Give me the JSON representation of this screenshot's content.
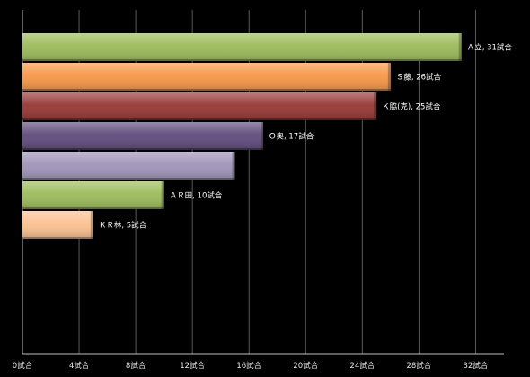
{
  "chart_data": {
    "type": "bar",
    "orientation": "horizontal",
    "unit": "試合",
    "xlim": [
      0,
      34
    ],
    "x_ticks": [
      0,
      4,
      8,
      12,
      16,
      20,
      24,
      28,
      32
    ],
    "x_tick_labels": [
      "0試合",
      "4試合",
      "8試合",
      "12試合",
      "16試合",
      "20試合",
      "24試合",
      "28試合",
      "32試合"
    ],
    "grid": "vertical",
    "bars": [
      {
        "category": "Ａ立",
        "value": 31,
        "color": "#9bbb59",
        "label": "Ａ立, 31試合"
      },
      {
        "category": "Ｓ藤",
        "value": 26,
        "color": "#f79646",
        "label": "Ｓ藤, 26試合"
      },
      {
        "category": "Ｋ脇(克)",
        "value": 25,
        "color": "#953735",
        "label": "Ｋ脇(克), 25試合"
      },
      {
        "category": "Ｏ奥",
        "value": 17,
        "color": "#604a7b",
        "label": "Ｏ奥, 17試合"
      },
      {
        "category": "",
        "value": 15,
        "color": "#a094b8",
        "label": ""
      },
      {
        "category": "ＡＲ田",
        "value": 10,
        "color": "#9bbb59",
        "label": "ＡＲ田, 10試合"
      },
      {
        "category": "ＫＲ林",
        "value": 5,
        "color": "#fac08f",
        "label": "ＫＲ林, 5試合"
      }
    ]
  }
}
